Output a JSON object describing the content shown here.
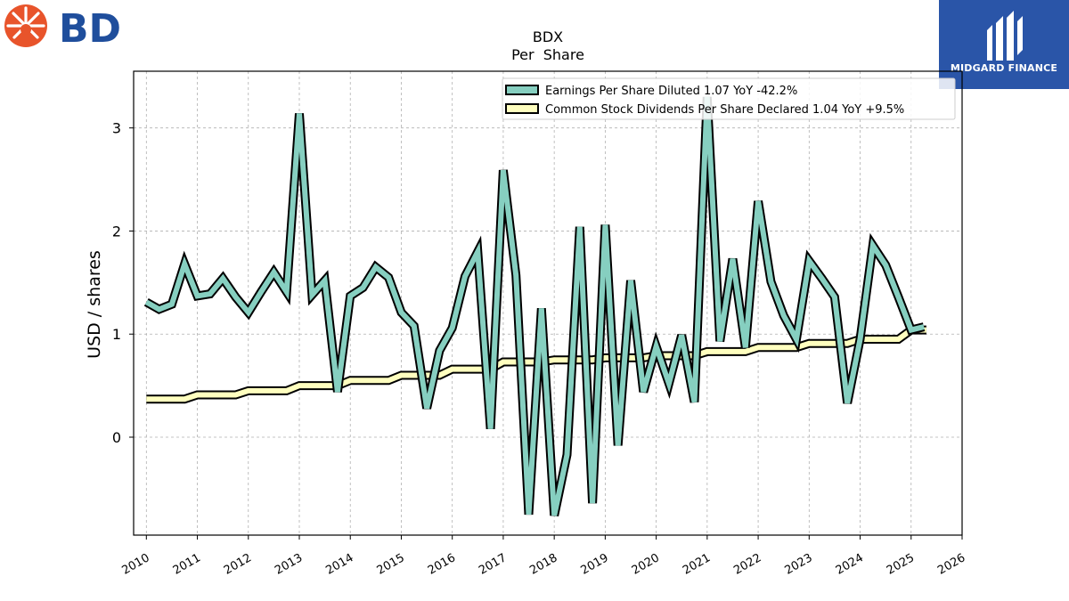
{
  "logos": {
    "left_brand": "BD",
    "right_brand": "MIDGARD FINANCE"
  },
  "colors": {
    "eps": "#86cfc0",
    "dividends": "#ffffbf",
    "outline": "#000000",
    "bd_orange": "#e8542b",
    "bd_blue": "#1f4e9c",
    "midgard_blue": "#2a55a8"
  },
  "chart_data": {
    "type": "line",
    "title": "BDX",
    "subtitle": "Per  Share",
    "xlabel": "",
    "ylabel": "USD / shares",
    "xlim": [
      2009.75,
      2026.0
    ],
    "ylim": [
      -0.95,
      3.55
    ],
    "x_ticks": [
      "2010",
      "2011",
      "2012",
      "2013",
      "2014",
      "2015",
      "2016",
      "2017",
      "2018",
      "2019",
      "2020",
      "2021",
      "2022",
      "2023",
      "2024",
      "2025",
      "2026"
    ],
    "y_ticks": [
      0,
      1,
      2,
      3
    ],
    "grid": true,
    "legend_position": "top-right",
    "series": [
      {
        "name": "Earnings Per Share Diluted",
        "legend_label": "Earnings Per Share Diluted  1.07 YoY -42.2%",
        "color_key": "eps",
        "x": [
          2010.0,
          2010.25,
          2010.5,
          2010.75,
          2011.0,
          2011.25,
          2011.5,
          2011.75,
          2012.0,
          2012.25,
          2012.5,
          2012.75,
          2013.0,
          2013.25,
          2013.5,
          2013.75,
          2014.0,
          2014.25,
          2014.5,
          2014.75,
          2015.0,
          2015.25,
          2015.5,
          2015.75,
          2016.0,
          2016.25,
          2016.5,
          2016.75,
          2017.0,
          2017.25,
          2017.5,
          2017.75,
          2018.0,
          2018.25,
          2018.5,
          2018.75,
          2019.0,
          2019.25,
          2019.5,
          2019.75,
          2020.0,
          2020.25,
          2020.5,
          2020.75,
          2021.0,
          2021.25,
          2021.5,
          2021.75,
          2022.0,
          2022.25,
          2022.5,
          2022.75,
          2023.0,
          2023.25,
          2023.5,
          2023.75,
          2024.0,
          2024.25,
          2024.5,
          2024.75,
          2025.0,
          2025.25
        ],
        "values": [
          1.31,
          1.24,
          1.29,
          1.68,
          1.37,
          1.39,
          1.54,
          1.36,
          1.21,
          1.41,
          1.6,
          1.41,
          3.14,
          1.38,
          1.52,
          0.44,
          1.37,
          1.45,
          1.65,
          1.55,
          1.21,
          1.08,
          0.28,
          0.84,
          1.06,
          1.56,
          1.8,
          0.08,
          2.59,
          1.57,
          -0.75,
          1.25,
          -0.76,
          -0.17,
          2.04,
          -0.64,
          2.06,
          -0.08,
          1.52,
          0.44,
          0.88,
          0.52,
          0.99,
          0.34,
          3.3,
          0.93,
          1.73,
          0.87,
          2.29,
          1.51,
          1.18,
          0.95,
          1.71,
          1.54,
          1.36,
          0.33,
          0.95,
          1.86,
          1.67,
          1.36,
          1.04,
          1.07
        ]
      },
      {
        "name": "Common Stock Dividends Per Share Declared",
        "legend_label": "Common Stock Dividends Per Share Declared  1.04 YoY +9.5%",
        "color_key": "dividends",
        "x": [
          2010.0,
          2010.5,
          2010.75,
          2011.0,
          2011.5,
          2011.75,
          2012.0,
          2012.5,
          2012.75,
          2013.0,
          2013.5,
          2013.75,
          2014.0,
          2014.5,
          2014.75,
          2015.0,
          2015.5,
          2015.75,
          2016.0,
          2016.5,
          2016.75,
          2017.0,
          2017.5,
          2017.75,
          2018.0,
          2018.5,
          2018.75,
          2019.0,
          2019.5,
          2019.75,
          2020.0,
          2020.5,
          2020.75,
          2021.0,
          2021.5,
          2021.75,
          2022.0,
          2022.5,
          2022.75,
          2023.0,
          2023.5,
          2023.75,
          2024.0,
          2024.5,
          2024.75,
          2025.0,
          2025.3
        ],
        "values": [
          0.37,
          0.37,
          0.37,
          0.41,
          0.41,
          0.41,
          0.45,
          0.45,
          0.45,
          0.5,
          0.5,
          0.5,
          0.55,
          0.55,
          0.55,
          0.6,
          0.6,
          0.6,
          0.66,
          0.66,
          0.66,
          0.73,
          0.73,
          0.73,
          0.75,
          0.75,
          0.75,
          0.77,
          0.77,
          0.77,
          0.79,
          0.79,
          0.79,
          0.83,
          0.83,
          0.83,
          0.87,
          0.87,
          0.87,
          0.91,
          0.91,
          0.91,
          0.95,
          0.95,
          0.95,
          1.04,
          1.04
        ]
      }
    ]
  }
}
